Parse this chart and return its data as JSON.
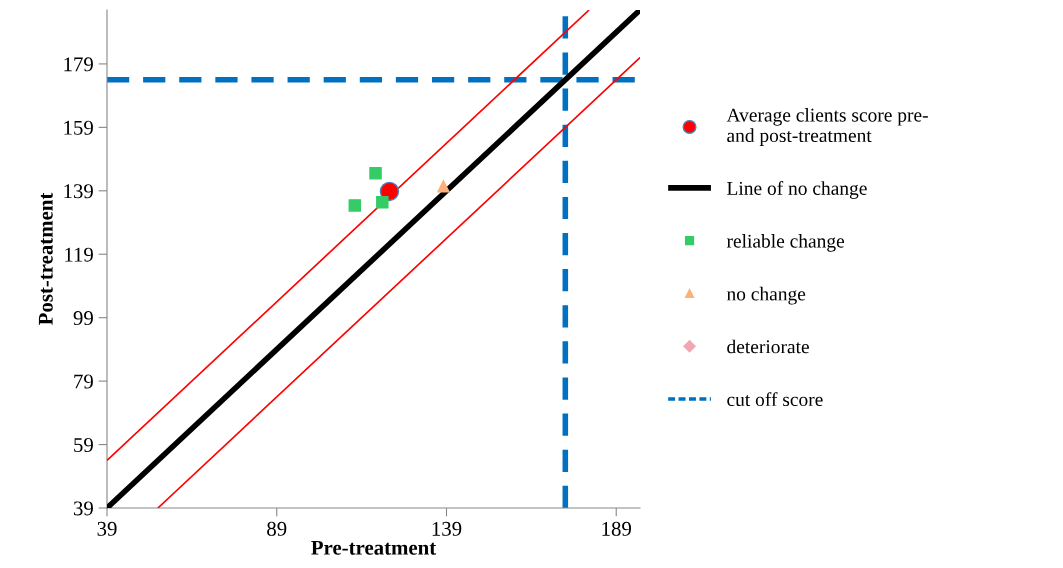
{
  "chart_data": {
    "type": "scatter",
    "xlabel": "Pre-treatment",
    "ylabel": "Post-treatment",
    "xlim": [
      39,
      196
    ],
    "ylim": [
      39,
      196
    ],
    "xticks": [
      39,
      89,
      139,
      189
    ],
    "yticks": [
      39,
      59,
      79,
      99,
      119,
      139,
      159,
      179
    ],
    "grid": false,
    "legend": "right",
    "series": [
      {
        "name": "Average clients score pre-\nand post-treatment",
        "marker": "circle",
        "color": "#ff0000",
        "x": [
          122.2
        ],
        "values": [
          138.8
        ]
      },
      {
        "name": "Line of no change",
        "type": "line",
        "marker": "none",
        "line_style": "solid",
        "color": "#000000",
        "x": [
          39,
          196
        ],
        "values": [
          39,
          196
        ]
      },
      {
        "type": "line",
        "marker": "none",
        "line_style": "solid",
        "color": "#ff0000",
        "x": [
          39,
          181
        ],
        "values": [
          54,
          196
        ]
      },
      {
        "type": "line",
        "marker": "none",
        "line_style": "solid",
        "color": "#ff0000",
        "x": [
          54,
          196
        ],
        "values": [
          39,
          181
        ]
      },
      {
        "name": "reliable change",
        "marker": "square",
        "color": "#33cc66",
        "x": [
          112,
          118.1,
          120.1
        ],
        "values": [
          134.4,
          144.5,
          135.4
        ]
      },
      {
        "name": "no change",
        "marker": "triangle",
        "color": "#fab27a",
        "x": [
          138.1
        ],
        "values": [
          140.4
        ]
      },
      {
        "name": "deteriorate",
        "marker": "diamond",
        "color": "#f4a6b0"
      }
    ],
    "ref_lines": [
      {
        "axis": "y",
        "value": 174,
        "label": "cut off score",
        "color": "#0070c0",
        "line_style": "dashed"
      },
      {
        "axis": "x",
        "value": 174,
        "color": "#0070c0",
        "line_style": "dashed"
      }
    ]
  }
}
